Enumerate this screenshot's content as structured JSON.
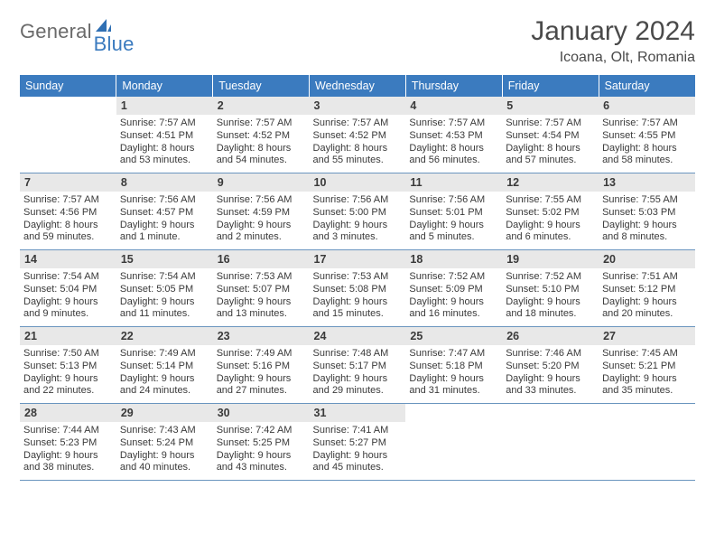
{
  "logo": {
    "text1": "General",
    "text2": "Blue",
    "mark_color": "#2f6fb3"
  },
  "header": {
    "month": "January 2024",
    "location": "Icoana, Olt, Romania"
  },
  "colors": {
    "header_bg": "#3b7bbf",
    "rule": "#6a95bf",
    "daynum_bg": "#e8e8e8",
    "text": "#3a3a3a"
  },
  "day_labels": [
    "Sunday",
    "Monday",
    "Tuesday",
    "Wednesday",
    "Thursday",
    "Friday",
    "Saturday"
  ],
  "weeks": [
    [
      null,
      {
        "n": "1",
        "sr": "Sunrise: 7:57 AM",
        "ss": "Sunset: 4:51 PM",
        "d1": "Daylight: 8 hours",
        "d2": "and 53 minutes."
      },
      {
        "n": "2",
        "sr": "Sunrise: 7:57 AM",
        "ss": "Sunset: 4:52 PM",
        "d1": "Daylight: 8 hours",
        "d2": "and 54 minutes."
      },
      {
        "n": "3",
        "sr": "Sunrise: 7:57 AM",
        "ss": "Sunset: 4:52 PM",
        "d1": "Daylight: 8 hours",
        "d2": "and 55 minutes."
      },
      {
        "n": "4",
        "sr": "Sunrise: 7:57 AM",
        "ss": "Sunset: 4:53 PM",
        "d1": "Daylight: 8 hours",
        "d2": "and 56 minutes."
      },
      {
        "n": "5",
        "sr": "Sunrise: 7:57 AM",
        "ss": "Sunset: 4:54 PM",
        "d1": "Daylight: 8 hours",
        "d2": "and 57 minutes."
      },
      {
        "n": "6",
        "sr": "Sunrise: 7:57 AM",
        "ss": "Sunset: 4:55 PM",
        "d1": "Daylight: 8 hours",
        "d2": "and 58 minutes."
      }
    ],
    [
      {
        "n": "7",
        "sr": "Sunrise: 7:57 AM",
        "ss": "Sunset: 4:56 PM",
        "d1": "Daylight: 8 hours",
        "d2": "and 59 minutes."
      },
      {
        "n": "8",
        "sr": "Sunrise: 7:56 AM",
        "ss": "Sunset: 4:57 PM",
        "d1": "Daylight: 9 hours",
        "d2": "and 1 minute."
      },
      {
        "n": "9",
        "sr": "Sunrise: 7:56 AM",
        "ss": "Sunset: 4:59 PM",
        "d1": "Daylight: 9 hours",
        "d2": "and 2 minutes."
      },
      {
        "n": "10",
        "sr": "Sunrise: 7:56 AM",
        "ss": "Sunset: 5:00 PM",
        "d1": "Daylight: 9 hours",
        "d2": "and 3 minutes."
      },
      {
        "n": "11",
        "sr": "Sunrise: 7:56 AM",
        "ss": "Sunset: 5:01 PM",
        "d1": "Daylight: 9 hours",
        "d2": "and 5 minutes."
      },
      {
        "n": "12",
        "sr": "Sunrise: 7:55 AM",
        "ss": "Sunset: 5:02 PM",
        "d1": "Daylight: 9 hours",
        "d2": "and 6 minutes."
      },
      {
        "n": "13",
        "sr": "Sunrise: 7:55 AM",
        "ss": "Sunset: 5:03 PM",
        "d1": "Daylight: 9 hours",
        "d2": "and 8 minutes."
      }
    ],
    [
      {
        "n": "14",
        "sr": "Sunrise: 7:54 AM",
        "ss": "Sunset: 5:04 PM",
        "d1": "Daylight: 9 hours",
        "d2": "and 9 minutes."
      },
      {
        "n": "15",
        "sr": "Sunrise: 7:54 AM",
        "ss": "Sunset: 5:05 PM",
        "d1": "Daylight: 9 hours",
        "d2": "and 11 minutes."
      },
      {
        "n": "16",
        "sr": "Sunrise: 7:53 AM",
        "ss": "Sunset: 5:07 PM",
        "d1": "Daylight: 9 hours",
        "d2": "and 13 minutes."
      },
      {
        "n": "17",
        "sr": "Sunrise: 7:53 AM",
        "ss": "Sunset: 5:08 PM",
        "d1": "Daylight: 9 hours",
        "d2": "and 15 minutes."
      },
      {
        "n": "18",
        "sr": "Sunrise: 7:52 AM",
        "ss": "Sunset: 5:09 PM",
        "d1": "Daylight: 9 hours",
        "d2": "and 16 minutes."
      },
      {
        "n": "19",
        "sr": "Sunrise: 7:52 AM",
        "ss": "Sunset: 5:10 PM",
        "d1": "Daylight: 9 hours",
        "d2": "and 18 minutes."
      },
      {
        "n": "20",
        "sr": "Sunrise: 7:51 AM",
        "ss": "Sunset: 5:12 PM",
        "d1": "Daylight: 9 hours",
        "d2": "and 20 minutes."
      }
    ],
    [
      {
        "n": "21",
        "sr": "Sunrise: 7:50 AM",
        "ss": "Sunset: 5:13 PM",
        "d1": "Daylight: 9 hours",
        "d2": "and 22 minutes."
      },
      {
        "n": "22",
        "sr": "Sunrise: 7:49 AM",
        "ss": "Sunset: 5:14 PM",
        "d1": "Daylight: 9 hours",
        "d2": "and 24 minutes."
      },
      {
        "n": "23",
        "sr": "Sunrise: 7:49 AM",
        "ss": "Sunset: 5:16 PM",
        "d1": "Daylight: 9 hours",
        "d2": "and 27 minutes."
      },
      {
        "n": "24",
        "sr": "Sunrise: 7:48 AM",
        "ss": "Sunset: 5:17 PM",
        "d1": "Daylight: 9 hours",
        "d2": "and 29 minutes."
      },
      {
        "n": "25",
        "sr": "Sunrise: 7:47 AM",
        "ss": "Sunset: 5:18 PM",
        "d1": "Daylight: 9 hours",
        "d2": "and 31 minutes."
      },
      {
        "n": "26",
        "sr": "Sunrise: 7:46 AM",
        "ss": "Sunset: 5:20 PM",
        "d1": "Daylight: 9 hours",
        "d2": "and 33 minutes."
      },
      {
        "n": "27",
        "sr": "Sunrise: 7:45 AM",
        "ss": "Sunset: 5:21 PM",
        "d1": "Daylight: 9 hours",
        "d2": "and 35 minutes."
      }
    ],
    [
      {
        "n": "28",
        "sr": "Sunrise: 7:44 AM",
        "ss": "Sunset: 5:23 PM",
        "d1": "Daylight: 9 hours",
        "d2": "and 38 minutes."
      },
      {
        "n": "29",
        "sr": "Sunrise: 7:43 AM",
        "ss": "Sunset: 5:24 PM",
        "d1": "Daylight: 9 hours",
        "d2": "and 40 minutes."
      },
      {
        "n": "30",
        "sr": "Sunrise: 7:42 AM",
        "ss": "Sunset: 5:25 PM",
        "d1": "Daylight: 9 hours",
        "d2": "and 43 minutes."
      },
      {
        "n": "31",
        "sr": "Sunrise: 7:41 AM",
        "ss": "Sunset: 5:27 PM",
        "d1": "Daylight: 9 hours",
        "d2": "and 45 minutes."
      },
      null,
      null,
      null
    ]
  ]
}
